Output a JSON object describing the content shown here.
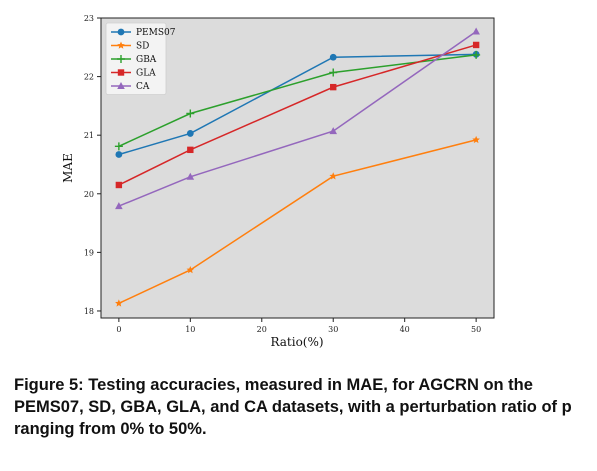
{
  "chart_data": {
    "type": "line",
    "title": "",
    "xlabel": "Ratio(%)",
    "ylabel": "MAE",
    "x": [
      0,
      10,
      30,
      50
    ],
    "xticks": [
      0,
      10,
      20,
      30,
      40,
      50
    ],
    "yticks": [
      18,
      19,
      20,
      21,
      22,
      23
    ],
    "xlim": [
      -2.5,
      52.5
    ],
    "ylim": [
      17.88,
      23.0
    ],
    "grid": false,
    "legend_position": "top-left",
    "series": [
      {
        "name": "PEMS07",
        "values": [
          20.67,
          21.03,
          22.33,
          22.38
        ],
        "color": "#1f77b4",
        "marker": "circle"
      },
      {
        "name": "SD",
        "values": [
          18.13,
          18.7,
          20.3,
          20.92
        ],
        "color": "#ff7f0e",
        "marker": "star"
      },
      {
        "name": "GBA",
        "values": [
          20.81,
          21.37,
          22.07,
          22.37
        ],
        "color": "#2ca02c",
        "marker": "plus"
      },
      {
        "name": "GLA",
        "values": [
          20.15,
          20.75,
          21.82,
          22.54
        ],
        "color": "#d62728",
        "marker": "square"
      },
      {
        "name": "CA",
        "values": [
          19.79,
          20.29,
          21.07,
          22.77
        ],
        "color": "#9467bd",
        "marker": "triangle"
      }
    ]
  },
  "caption": "Figure 5: Testing accuracies, measured in MAE, for AGCRN on the PEMS07, SD, GBA, GLA, and CA datasets, with a perturbation ratio of p ranging from 0% to 50%."
}
